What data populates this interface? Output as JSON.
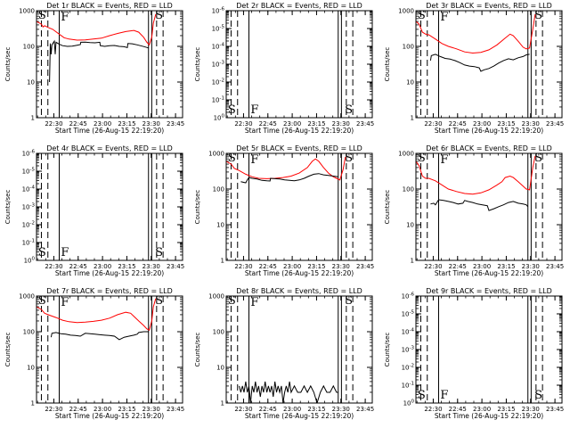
{
  "figure": {
    "background": "#ffffff",
    "event_color": "#000000",
    "lld_color": "#ff0000"
  },
  "chart_data": [
    {
      "type": "line",
      "title": "Det 1r BLACK = Events, RED = LLD",
      "xlabel": "Start Time (26-Aug-15 22:19:20)",
      "ylabel": "Counts/sec",
      "x_unit": "minutes after 22:19:20",
      "xlim": [
        0,
        90
      ],
      "xticks": [
        "22:30",
        "22:45",
        "23:00",
        "23:15",
        "23:30",
        "23:45"
      ],
      "ylim": [
        1,
        1000
      ],
      "yscale": "log",
      "yticks": [
        "1",
        "10",
        "100",
        "1000"
      ],
      "markers": [
        {
          "label": "S",
          "x": 0.5
        },
        {
          "label": "F",
          "x": 14.5
        },
        {
          "label": "S",
          "x": 72.5
        }
      ],
      "solid_lines": [
        14,
        69,
        71
      ],
      "dashed_lines": [
        3,
        7,
        74,
        78
      ],
      "series": [
        {
          "role": "lld",
          "x": [
            0,
            3,
            4,
            5,
            7,
            10,
            14,
            17,
            20,
            25,
            30,
            35,
            40,
            45,
            50,
            55,
            60,
            63,
            66,
            68,
            69.5,
            71,
            72,
            73.5
          ],
          "y": [
            500,
            420,
            350,
            380,
            340,
            300,
            220,
            175,
            160,
            150,
            152,
            160,
            170,
            200,
            230,
            260,
            280,
            250,
            180,
            130,
            110,
            180,
            450,
            800
          ]
        },
        {
          "role": "events",
          "x": [
            8,
            8.5,
            9,
            9.5,
            11,
            11.5,
            12,
            14,
            16,
            19,
            22,
            25,
            27,
            27.3,
            30,
            33,
            36,
            39,
            39.3,
            42,
            45,
            48,
            51,
            54,
            56,
            56.3,
            59,
            62,
            65,
            67,
            69
          ],
          "y": [
            10,
            120,
            60,
            110,
            140,
            60,
            130,
            115,
            105,
            100,
            102,
            108,
            112,
            130,
            132,
            128,
            126,
            130,
            105,
            100,
            104,
            106,
            100,
            98,
            92,
            120,
            118,
            110,
            102,
            96,
            90
          ]
        }
      ]
    },
    {
      "type": "line",
      "title": "Det 2r BLACK = Events, RED = LLD",
      "xlabel": "Start Time (26-Aug-15 22:19:20)",
      "ylabel": "Counts/sec",
      "x_unit": "minutes after 22:19:20",
      "xlim": [
        0,
        90
      ],
      "xticks": [
        "22:30",
        "22:45",
        "23:00",
        "23:15",
        "23:30",
        "23:45"
      ],
      "ylim": [
        1,
        1e-06
      ],
      "yscale": "log",
      "yticks": [
        "10^0",
        "10^-1",
        "10^-2",
        "10^-3",
        "10^-4",
        "10^-5",
        "10^-6"
      ],
      "markers": [
        {
          "label": "S",
          "x": 0.5
        },
        {
          "label": "F",
          "x": 14.5
        },
        {
          "label": "S",
          "x": 72.5
        }
      ],
      "solid_lines": [
        14,
        69,
        71
      ],
      "dashed_lines": [
        3,
        7,
        74,
        78
      ],
      "series": []
    },
    {
      "type": "line",
      "title": "Det 3r BLACK = Events, RED = LLD",
      "xlabel": "Start Time (26-Aug-15 22:19:20)",
      "ylabel": "Counts/sec",
      "x_unit": "minutes after 22:19:20",
      "xlim": [
        0,
        90
      ],
      "xticks": [
        "22:30",
        "22:45",
        "23:00",
        "23:15",
        "23:30",
        "23:45"
      ],
      "ylim": [
        1,
        1000
      ],
      "yscale": "log",
      "yticks": [
        "1",
        "10",
        "100",
        "1000"
      ],
      "markers": [
        {
          "label": "S",
          "x": 0.5
        },
        {
          "label": "F",
          "x": 14.5
        },
        {
          "label": "S",
          "x": 72.5
        }
      ],
      "solid_lines": [
        14,
        69,
        71
      ],
      "dashed_lines": [
        3,
        7,
        74,
        78
      ],
      "series": [
        {
          "role": "lld",
          "x": [
            0,
            2,
            4,
            6,
            8,
            12,
            16,
            20,
            25,
            30,
            35,
            40,
            45,
            50,
            55,
            58,
            60,
            63,
            66,
            68,
            70,
            72,
            73.5
          ],
          "y": [
            500,
            420,
            250,
            220,
            210,
            160,
            120,
            100,
            85,
            70,
            65,
            68,
            80,
            110,
            170,
            220,
            200,
            140,
            95,
            85,
            90,
            300,
            800
          ]
        },
        {
          "role": "events",
          "x": [
            9,
            9.5,
            12,
            15,
            18,
            21,
            24,
            27,
            30,
            33,
            36,
            39,
            40,
            42,
            45,
            48,
            51,
            54,
            57,
            60,
            63,
            66,
            68,
            70
          ],
          "y": [
            40,
            55,
            60,
            52,
            46,
            44,
            40,
            35,
            30,
            28,
            27,
            25,
            20,
            22,
            24,
            28,
            34,
            40,
            45,
            42,
            48,
            52,
            58,
            60
          ]
        }
      ]
    },
    {
      "type": "line",
      "title": "Det 4r BLACK = Events, RED = LLD",
      "xlabel": "Start Time (26-Aug-15 22:19:20)",
      "ylabel": "Counts/sec",
      "x_unit": "minutes after 22:19:20",
      "xlim": [
        0,
        90
      ],
      "xticks": [
        "22:30",
        "22:45",
        "23:00",
        "23:15",
        "23:30",
        "23:45"
      ],
      "ylim": [
        1,
        1e-06
      ],
      "yscale": "log",
      "yticks": [
        "10^0",
        "10^-1",
        "10^-2",
        "10^-3",
        "10^-4",
        "10^-5",
        "10^-6"
      ],
      "markers": [
        {
          "label": "S",
          "x": 0.5
        },
        {
          "label": "F",
          "x": 14.5
        },
        {
          "label": "S",
          "x": 72.5
        }
      ],
      "solid_lines": [
        14,
        69,
        71
      ],
      "dashed_lines": [
        3,
        7,
        74,
        78
      ],
      "series": []
    },
    {
      "type": "line",
      "title": "Det 5r BLACK = Events, RED = LLD",
      "xlabel": "Start Time (26-Aug-15 22:19:20)",
      "ylabel": "Counts/sec",
      "x_unit": "minutes after 22:19:20",
      "xlim": [
        0,
        90
      ],
      "xticks": [
        "22:30",
        "22:45",
        "23:00",
        "23:15",
        "23:30",
        "23:45"
      ],
      "ylim": [
        1,
        1000
      ],
      "yscale": "log",
      "yticks": [
        "1",
        "10",
        "100",
        "1000"
      ],
      "markers": [
        {
          "label": "S",
          "x": 0.5
        },
        {
          "label": "F",
          "x": 14.5
        },
        {
          "label": "S",
          "x": 72.5
        }
      ],
      "solid_lines": [
        14,
        69,
        71
      ],
      "dashed_lines": [
        3,
        7,
        74,
        78
      ],
      "series": [
        {
          "role": "lld",
          "x": [
            0,
            3,
            5,
            8,
            12,
            16,
            20,
            25,
            30,
            35,
            40,
            45,
            50,
            53,
            55,
            57,
            60,
            63,
            66,
            68,
            70,
            72,
            73.5
          ],
          "y": [
            600,
            500,
            380,
            330,
            260,
            220,
            200,
            195,
            200,
            210,
            230,
            280,
            400,
            600,
            700,
            600,
            400,
            280,
            220,
            200,
            180,
            350,
            800
          ]
        },
        {
          "role": "events",
          "x": [
            9,
            12,
            13,
            14,
            16,
            19,
            22,
            25,
            27,
            27.3,
            30,
            33,
            36,
            39,
            42,
            45,
            48,
            51,
            54,
            57,
            60,
            63,
            66,
            69
          ],
          "y": [
            160,
            150,
            180,
            210,
            200,
            190,
            175,
            170,
            168,
            200,
            195,
            190,
            180,
            175,
            170,
            180,
            200,
            230,
            260,
            270,
            250,
            240,
            230,
            220
          ]
        }
      ]
    },
    {
      "type": "line",
      "title": "Det 6r BLACK = Events, RED = LLD",
      "xlabel": "Start Time (26-Aug-15 22:19:20)",
      "ylabel": "Counts/sec",
      "x_unit": "minutes after 22:19:20",
      "xlim": [
        0,
        90
      ],
      "xticks": [
        "22:30",
        "22:45",
        "23:00",
        "23:15",
        "23:30",
        "23:45"
      ],
      "ylim": [
        1,
        1000
      ],
      "yscale": "log",
      "yticks": [
        "1",
        "10",
        "100",
        "1000"
      ],
      "markers": [
        {
          "label": "S",
          "x": 0.5
        },
        {
          "label": "F",
          "x": 14.5
        },
        {
          "label": "S",
          "x": 72.5
        }
      ],
      "solid_lines": [
        14,
        69,
        71
      ],
      "dashed_lines": [
        3,
        7,
        74,
        78
      ],
      "series": [
        {
          "role": "lld",
          "x": [
            0,
            2,
            4,
            6,
            8,
            12,
            16,
            20,
            25,
            30,
            35,
            40,
            45,
            50,
            53,
            55,
            58,
            60,
            63,
            66,
            68,
            70,
            72,
            73.5
          ],
          "y": [
            600,
            450,
            230,
            200,
            200,
            170,
            130,
            100,
            85,
            75,
            72,
            78,
            95,
            130,
            160,
            210,
            230,
            210,
            160,
            120,
            100,
            95,
            400,
            850
          ]
        },
        {
          "role": "events",
          "x": [
            9,
            11,
            12,
            14,
            17,
            20,
            23,
            26,
            29,
            30,
            32,
            35,
            38,
            41,
            44,
            45,
            48,
            51,
            54,
            57,
            60,
            63,
            66,
            68,
            69
          ],
          "y": [
            38,
            40,
            36,
            50,
            48,
            45,
            42,
            38,
            40,
            48,
            45,
            42,
            38,
            36,
            34,
            25,
            28,
            32,
            36,
            42,
            45,
            40,
            38,
            36,
            32
          ]
        }
      ]
    },
    {
      "type": "line",
      "title": "Det 7r BLACK = Events, RED = LLD",
      "xlabel": "Start Time (26-Aug-15 22:19:20)",
      "ylabel": "Counts/sec",
      "x_unit": "minutes after 22:19:20",
      "xlim": [
        0,
        90
      ],
      "xticks": [
        "22:30",
        "22:45",
        "23:00",
        "23:15",
        "23:30",
        "23:45"
      ],
      "ylim": [
        1,
        1000
      ],
      "yscale": "log",
      "yticks": [
        "1",
        "10",
        "100",
        "1000"
      ],
      "markers": [
        {
          "label": "S",
          "x": 0.5
        },
        {
          "label": "F",
          "x": 14.5
        },
        {
          "label": "S",
          "x": 72.5
        }
      ],
      "solid_lines": [
        14,
        69,
        71
      ],
      "dashed_lines": [
        3,
        7,
        74,
        78
      ],
      "series": [
        {
          "role": "lld",
          "x": [
            0,
            3,
            5,
            8,
            12,
            16,
            20,
            25,
            30,
            35,
            40,
            45,
            50,
            55,
            58,
            60,
            63,
            66,
            68,
            69.5,
            71,
            72,
            73.5
          ],
          "y": [
            500,
            420,
            330,
            290,
            250,
            210,
            190,
            180,
            185,
            195,
            210,
            240,
            300,
            350,
            330,
            270,
            200,
            150,
            120,
            110,
            200,
            500,
            850
          ]
        },
        {
          "role": "events",
          "x": [
            9,
            9.5,
            12,
            15,
            18,
            21,
            24,
            27,
            30,
            33,
            36,
            39,
            42,
            45,
            48,
            51,
            54,
            57,
            60,
            62,
            63,
            66,
            69
          ],
          "y": [
            70,
            90,
            95,
            88,
            85,
            80,
            78,
            75,
            90,
            88,
            85,
            82,
            80,
            78,
            75,
            60,
            70,
            75,
            80,
            85,
            95,
            100,
            100
          ]
        }
      ]
    },
    {
      "type": "line",
      "title": "Det 8r BLACK = Events, RED = LLD",
      "xlabel": "Start Time (26-Aug-15 22:19:20)",
      "ylabel": "Counts/sec",
      "x_unit": "minutes after 22:19:20",
      "xlim": [
        0,
        90
      ],
      "xticks": [
        "22:30",
        "22:45",
        "23:00",
        "23:15",
        "23:30",
        "23:45"
      ],
      "ylim": [
        1,
        1000
      ],
      "yscale": "log",
      "yticks": [
        "1",
        "10",
        "100",
        "1000"
      ],
      "markers": [
        {
          "label": "S",
          "x": 0.5
        },
        {
          "label": "F",
          "x": 14.5
        },
        {
          "label": "S",
          "x": 72.5
        }
      ],
      "solid_lines": [
        14,
        69,
        71
      ],
      "dashed_lines": [
        3,
        7,
        74,
        78
      ],
      "series": [
        {
          "role": "events",
          "x": [
            8,
            9,
            10,
            11,
            12,
            13,
            14,
            15,
            16,
            17,
            18,
            19,
            20,
            21,
            22,
            23,
            24,
            25,
            26,
            27,
            28,
            29,
            30,
            31,
            32,
            33,
            34,
            35,
            36,
            37,
            38,
            39,
            40,
            42,
            44,
            46,
            48,
            50,
            52,
            54,
            56,
            58,
            60,
            62,
            64,
            66,
            68,
            69
          ],
          "y": [
            3,
            2,
            3,
            2,
            4,
            2,
            3,
            1,
            3,
            2,
            4,
            2,
            3,
            1.5,
            3,
            2,
            4,
            2,
            3,
            2,
            3,
            1.5,
            4,
            2,
            3,
            2,
            3,
            1,
            2,
            3,
            2,
            4,
            2,
            3,
            2,
            2,
            3,
            2,
            3,
            2,
            1,
            2,
            3,
            2,
            2,
            3,
            2,
            2
          ]
        }
      ]
    },
    {
      "type": "line",
      "title": "Det 9r BLACK = Events, RED = LLD",
      "xlabel": "Start Time (26-Aug-15 22:19:20)",
      "ylabel": "Counts/sec",
      "x_unit": "minutes after 22:19:20",
      "xlim": [
        0,
        90
      ],
      "xticks": [
        "22:30",
        "22:45",
        "23:00",
        "23:15",
        "23:30",
        "23:45"
      ],
      "ylim": [
        1,
        1e-06
      ],
      "yscale": "log",
      "yticks": [
        "10^0",
        "10^-1",
        "10^-2",
        "10^-3",
        "10^-4",
        "10^-5",
        "10^-6"
      ],
      "markers": [
        {
          "label": "S",
          "x": 0.5
        },
        {
          "label": "F",
          "x": 14.5
        },
        {
          "label": "S",
          "x": 72.5
        }
      ],
      "solid_lines": [
        14,
        69,
        71
      ],
      "dashed_lines": [
        3,
        7,
        74,
        78
      ],
      "series": []
    }
  ]
}
